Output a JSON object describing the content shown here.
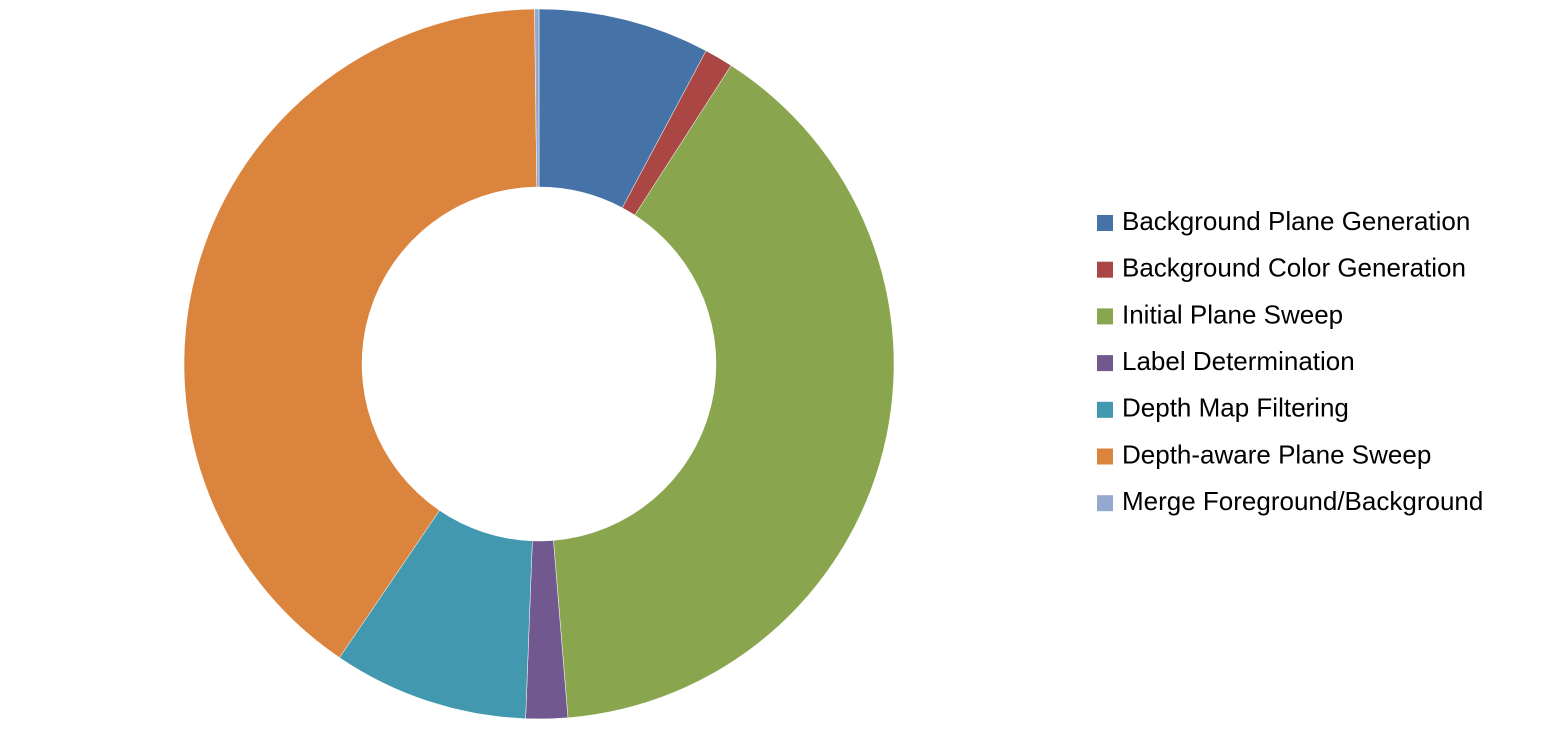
{
  "chart_data": {
    "type": "donut",
    "categories": [
      "Background Plane Generation",
      "Background Color Generation",
      "Initial Plane Sweep",
      "Label Determination",
      "Depth Map Filtering",
      "Depth-aware Plane Sweep",
      "Merge Foreground/Background"
    ],
    "values": [
      7.8,
      1.3,
      39.6,
      1.9,
      8.9,
      40.3,
      0.2
    ],
    "colors": [
      "#4572a7",
      "#aa4643",
      "#89a54e",
      "#71588f",
      "#4198af",
      "#db843d",
      "#93a9cf"
    ],
    "legend": "right"
  }
}
